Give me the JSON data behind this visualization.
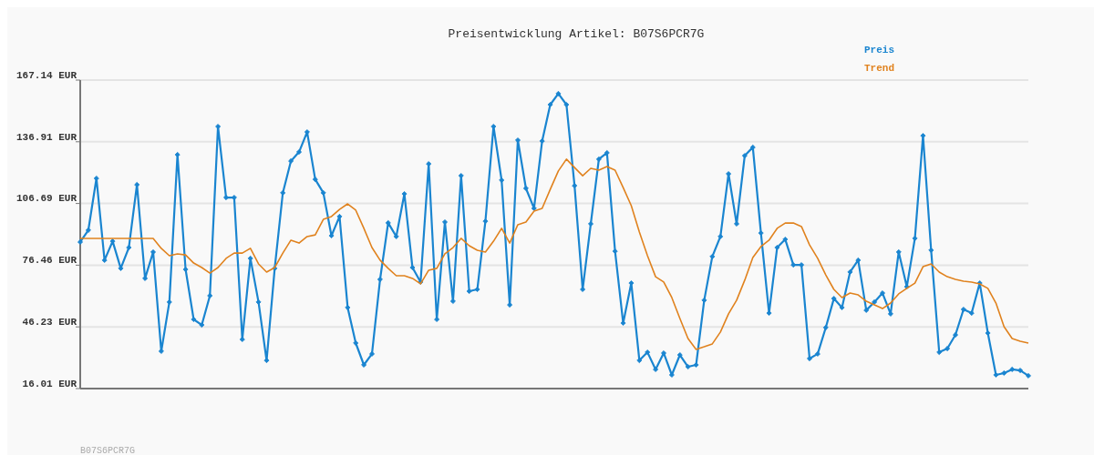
{
  "chart_data": {
    "type": "line",
    "title": "Preisentwicklung Artikel: B07S6PCR7G",
    "annotations": [
      "B07S6PCR7G"
    ],
    "categories": [
      null,
      null,
      null,
      null,
      null,
      null,
      null,
      null,
      null,
      null,
      null,
      null,
      null,
      null,
      null,
      null,
      null,
      null,
      null,
      null,
      null,
      null,
      null,
      null,
      null,
      null,
      null,
      null,
      null,
      null,
      null,
      null,
      null,
      null,
      null,
      null,
      null,
      null,
      null,
      null,
      null,
      null,
      null,
      null,
      null,
      null,
      null,
      null,
      null,
      null,
      null,
      null,
      null,
      null,
      null,
      null,
      null,
      null,
      null,
      null,
      null,
      null,
      null,
      null,
      null,
      null,
      null,
      null,
      null,
      null,
      null,
      null,
      null,
      null,
      null,
      null,
      null,
      null,
      null,
      null,
      null,
      null,
      null,
      null,
      null,
      null,
      null,
      null,
      null,
      null,
      null,
      null,
      null,
      null,
      null,
      null,
      null,
      null,
      null,
      null,
      null,
      null,
      null,
      null,
      null,
      null,
      null,
      null,
      null,
      null,
      null,
      null,
      null,
      null,
      null,
      null,
      null,
      null
    ],
    "series": [
      {
        "name": "Preis",
        "color": "#1a85d0",
        "marker": "diamond",
        "values": [
          87.8,
          93.6,
          119.0,
          78.9,
          88.2,
          74.9,
          85.1,
          115.9,
          70.0,
          82.9,
          34.3,
          58.4,
          130.6,
          74.4,
          49.9,
          47.2,
          61.5,
          144.4,
          109.6,
          109.6,
          40.1,
          79.8,
          58.4,
          29.8,
          74.9,
          111.9,
          127.5,
          131.9,
          141.7,
          118.5,
          111.9,
          90.9,
          100.3,
          55.7,
          38.3,
          27.6,
          33.0,
          69.5,
          97.2,
          90.5,
          111.4,
          75.3,
          68.2,
          126.1,
          49.9,
          97.6,
          58.8,
          120.3,
          63.7,
          64.6,
          98.0,
          144.4,
          118.1,
          57.0,
          137.7,
          114.1,
          104.3,
          137.3,
          155.1,
          160.5,
          155.1,
          115.4,
          64.6,
          96.7,
          128.4,
          131.5,
          83.3,
          48.1,
          67.7,
          29.8,
          33.8,
          25.4,
          33.4,
          22.7,
          32.5,
          26.7,
          27.6,
          59.3,
          80.7,
          90.5,
          121.2,
          96.7,
          130.1,
          134.2,
          92.2,
          53.0,
          85.1,
          89.1,
          76.6,
          76.6,
          30.7,
          33.0,
          45.9,
          60.1,
          55.7,
          73.1,
          78.9,
          54.4,
          58.4,
          62.8,
          52.6,
          82.9,
          65.9,
          89.6,
          139.9,
          83.8,
          33.8,
          35.6,
          42.3,
          54.8,
          53.0,
          67.7,
          43.2,
          22.7,
          23.6,
          25.4,
          24.9,
          22.3
        ]
      },
      {
        "name": "Trend",
        "color": "#e0821e",
        "marker": "none",
        "values": [
          89.6,
          89.6,
          89.6,
          89.6,
          89.6,
          89.6,
          89.6,
          89.6,
          89.6,
          89.6,
          84.7,
          81.1,
          82.0,
          81.5,
          77.5,
          75.3,
          72.6,
          75.3,
          79.8,
          82.4,
          82.4,
          84.7,
          77.1,
          73.1,
          75.3,
          82.4,
          88.7,
          87.3,
          90.5,
          91.3,
          98.9,
          100.3,
          103.8,
          106.5,
          103.4,
          94.5,
          85.1,
          78.9,
          74.9,
          71.3,
          71.3,
          70.0,
          67.3,
          74.0,
          74.9,
          82.0,
          85.1,
          89.6,
          86.0,
          83.8,
          82.9,
          88.2,
          94.5,
          87.3,
          96.3,
          97.6,
          102.9,
          104.3,
          113.6,
          122.6,
          128.4,
          124.3,
          120.3,
          123.9,
          123.0,
          124.8,
          123.0,
          114.5,
          105.6,
          92.7,
          81.1,
          70.8,
          68.2,
          60.6,
          50.3,
          40.5,
          35.2,
          36.5,
          37.9,
          43.7,
          52.6,
          59.3,
          69.1,
          80.2,
          85.6,
          88.7,
          94.5,
          97.1,
          97.1,
          95.4,
          86.4,
          79.8,
          71.7,
          64.6,
          60.6,
          62.8,
          61.9,
          58.8,
          57.0,
          55.2,
          57.9,
          62.4,
          65.1,
          67.7,
          75.7,
          77.1,
          73.1,
          70.8,
          69.5,
          68.6,
          68.2,
          67.3,
          65.1,
          57.9,
          46.3,
          40.5,
          39.2,
          38.3
        ]
      }
    ],
    "ylim": [
      16.01,
      167.14
    ],
    "yticks": [
      {
        "value": 16.01,
        "label": "16.01 EUR"
      },
      {
        "value": 46.23,
        "label": "46.23 EUR"
      },
      {
        "value": 76.46,
        "label": "76.46 EUR"
      },
      {
        "value": 106.69,
        "label": "106.69 EUR"
      },
      {
        "value": 136.91,
        "label": "136.91 EUR"
      },
      {
        "value": 167.14,
        "label": "167.14 EUR"
      }
    ],
    "grid": "y",
    "legend": "top right",
    "tick_labels": "y"
  }
}
